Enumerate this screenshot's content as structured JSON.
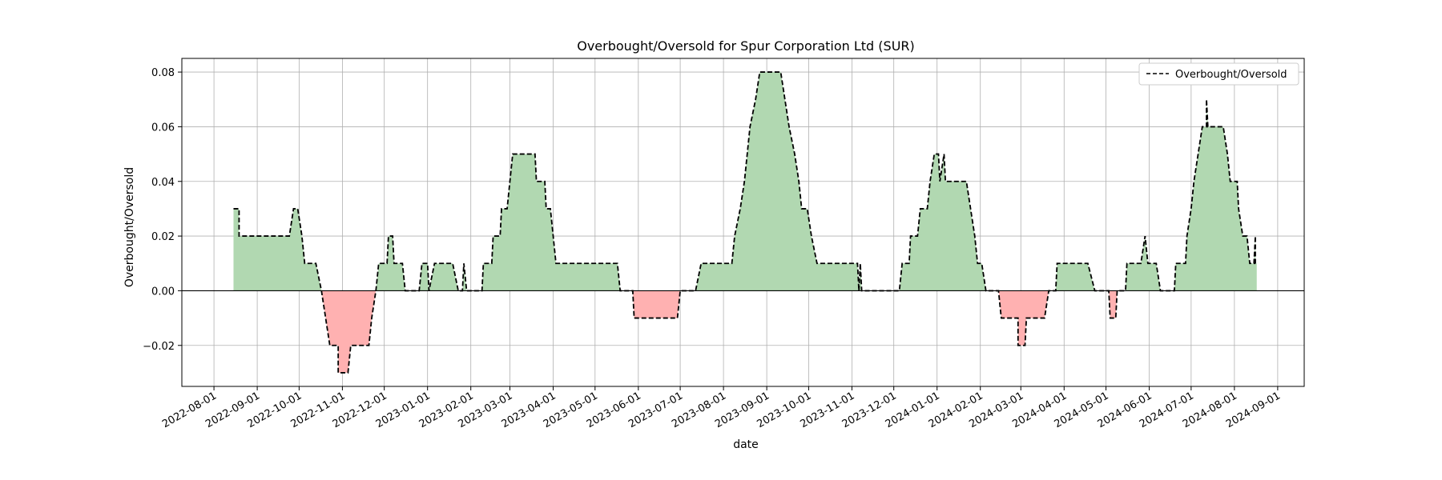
{
  "chart_data": {
    "type": "area",
    "title": "Overbought/Oversold for Spur Corporation Ltd (SUR)",
    "xlabel": "date",
    "ylabel": "Overbought/Oversold",
    "x_range": [
      "2022-07-09",
      "2024-09-20"
    ],
    "ylim": [
      -0.035,
      0.085
    ],
    "grid": true,
    "legend_position": "top-right",
    "x_ticks": [
      "2022-08-01",
      "2022-09-01",
      "2022-10-01",
      "2022-11-01",
      "2022-12-01",
      "2023-01-01",
      "2023-02-01",
      "2023-03-01",
      "2023-04-01",
      "2023-05-01",
      "2023-06-01",
      "2023-07-01",
      "2023-08-01",
      "2023-09-01",
      "2023-10-01",
      "2023-11-01",
      "2023-12-01",
      "2024-01-01",
      "2024-02-01",
      "2024-03-01",
      "2024-04-01",
      "2024-05-01",
      "2024-06-01",
      "2024-07-01",
      "2024-08-01",
      "2024-09-01"
    ],
    "y_ticks": [
      -0.02,
      0.0,
      0.02,
      0.04,
      0.06,
      0.08
    ],
    "y_tick_labels": [
      "−0.02",
      "0.00",
      "0.02",
      "0.04",
      "0.06",
      "0.08"
    ],
    "colors": {
      "positive_fill": "#b1d8b1",
      "negative_fill": "#ffb1b1",
      "line": "#000000",
      "zero_line": "#000000",
      "grid": "#b0b0b0"
    },
    "series": [
      {
        "name": "Overbought/Oversold",
        "style": "dashed",
        "points": [
          [
            "2022-08-15",
            0.03
          ],
          [
            "2022-08-19",
            0.03
          ],
          [
            "2022-08-19",
            0.02
          ],
          [
            "2022-09-24",
            0.02
          ],
          [
            "2022-09-27",
            0.03
          ],
          [
            "2022-09-30",
            0.03
          ],
          [
            "2022-10-03",
            0.02
          ],
          [
            "2022-10-05",
            0.01
          ],
          [
            "2022-10-13",
            0.01
          ],
          [
            "2022-10-17",
            0.0
          ],
          [
            "2022-10-20",
            -0.01
          ],
          [
            "2022-10-23",
            -0.02
          ],
          [
            "2022-10-29",
            -0.02
          ],
          [
            "2022-10-29",
            -0.03
          ],
          [
            "2022-11-05",
            -0.03
          ],
          [
            "2022-11-07",
            -0.02
          ],
          [
            "2022-11-20",
            -0.02
          ],
          [
            "2022-11-22",
            -0.01
          ],
          [
            "2022-11-25",
            0.0
          ],
          [
            "2022-11-27",
            0.01
          ],
          [
            "2022-12-03",
            0.01
          ],
          [
            "2022-12-04",
            0.02
          ],
          [
            "2022-12-07",
            0.02
          ],
          [
            "2022-12-08",
            0.01
          ],
          [
            "2022-12-14",
            0.01
          ],
          [
            "2022-12-16",
            0.0
          ],
          [
            "2022-12-26",
            0.0
          ],
          [
            "2022-12-28",
            0.01
          ],
          [
            "2023-01-01",
            0.01
          ],
          [
            "2023-01-02",
            0.0
          ],
          [
            "2023-01-06",
            0.01
          ],
          [
            "2023-01-19",
            0.01
          ],
          [
            "2023-01-23",
            0.0
          ],
          [
            "2023-01-26",
            0.0
          ],
          [
            "2023-01-27",
            0.01
          ],
          [
            "2023-01-29",
            0.0
          ],
          [
            "2023-02-09",
            0.0
          ],
          [
            "2023-02-10",
            0.01
          ],
          [
            "2023-02-16",
            0.01
          ],
          [
            "2023-02-17",
            0.02
          ],
          [
            "2023-02-22",
            0.02
          ],
          [
            "2023-02-23",
            0.03
          ],
          [
            "2023-02-27",
            0.03
          ],
          [
            "2023-03-01",
            0.04
          ],
          [
            "2023-03-03",
            0.05
          ],
          [
            "2023-03-19",
            0.05
          ],
          [
            "2023-03-20",
            0.04
          ],
          [
            "2023-03-26",
            0.04
          ],
          [
            "2023-03-27",
            0.03
          ],
          [
            "2023-03-30",
            0.03
          ],
          [
            "2023-04-01",
            0.02
          ],
          [
            "2023-04-03",
            0.01
          ],
          [
            "2023-05-17",
            0.01
          ],
          [
            "2023-05-19",
            0.0
          ],
          [
            "2023-05-28",
            0.0
          ],
          [
            "2023-05-29",
            -0.01
          ],
          [
            "2023-06-29",
            -0.01
          ],
          [
            "2023-07-01",
            0.0
          ],
          [
            "2023-07-12",
            0.0
          ],
          [
            "2023-07-16",
            0.01
          ],
          [
            "2023-08-07",
            0.01
          ],
          [
            "2023-08-09",
            0.02
          ],
          [
            "2023-08-13",
            0.03
          ],
          [
            "2023-08-16",
            0.04
          ],
          [
            "2023-08-20",
            0.06
          ],
          [
            "2023-08-24",
            0.07
          ],
          [
            "2023-08-27",
            0.08
          ],
          [
            "2023-09-11",
            0.08
          ],
          [
            "2023-09-14",
            0.07
          ],
          [
            "2023-09-17",
            0.06
          ],
          [
            "2023-09-21",
            0.05
          ],
          [
            "2023-09-24",
            0.04
          ],
          [
            "2023-09-26",
            0.03
          ],
          [
            "2023-09-30",
            0.03
          ],
          [
            "2023-10-03",
            0.02
          ],
          [
            "2023-10-07",
            0.01
          ],
          [
            "2023-11-05",
            0.01
          ],
          [
            "2023-11-06",
            0.0
          ],
          [
            "2023-11-07",
            0.01
          ],
          [
            "2023-11-08",
            0.0
          ],
          [
            "2023-12-05",
            0.0
          ],
          [
            "2023-12-07",
            0.01
          ],
          [
            "2023-12-12",
            0.01
          ],
          [
            "2023-12-13",
            0.02
          ],
          [
            "2023-12-18",
            0.02
          ],
          [
            "2023-12-20",
            0.03
          ],
          [
            "2023-12-25",
            0.03
          ],
          [
            "2023-12-27",
            0.04
          ],
          [
            "2023-12-30",
            0.05
          ],
          [
            "2024-01-02",
            0.05
          ],
          [
            "2024-01-03",
            0.04
          ],
          [
            "2024-01-06",
            0.05
          ],
          [
            "2024-01-07",
            0.04
          ],
          [
            "2024-01-22",
            0.04
          ],
          [
            "2024-01-25",
            0.03
          ],
          [
            "2024-01-28",
            0.02
          ],
          [
            "2024-01-30",
            0.01
          ],
          [
            "2024-02-02",
            0.01
          ],
          [
            "2024-02-05",
            0.0
          ],
          [
            "2024-02-14",
            0.0
          ],
          [
            "2024-02-16",
            -0.01
          ],
          [
            "2024-02-28",
            -0.01
          ],
          [
            "2024-02-28",
            -0.02
          ],
          [
            "2024-03-04",
            -0.02
          ],
          [
            "2024-03-05",
            -0.01
          ],
          [
            "2024-03-18",
            -0.01
          ],
          [
            "2024-03-21",
            0.0
          ],
          [
            "2024-03-26",
            0.0
          ],
          [
            "2024-03-27",
            0.01
          ],
          [
            "2024-04-18",
            0.01
          ],
          [
            "2024-04-23",
            0.0
          ],
          [
            "2024-05-03",
            0.0
          ],
          [
            "2024-05-04",
            -0.01
          ],
          [
            "2024-05-08",
            -0.01
          ],
          [
            "2024-05-09",
            0.0
          ],
          [
            "2024-05-15",
            0.0
          ],
          [
            "2024-05-16",
            0.01
          ],
          [
            "2024-05-26",
            0.01
          ],
          [
            "2024-05-29",
            0.02
          ],
          [
            "2024-05-31",
            0.01
          ],
          [
            "2024-06-06",
            0.01
          ],
          [
            "2024-06-09",
            0.0
          ],
          [
            "2024-06-19",
            0.0
          ],
          [
            "2024-06-20",
            0.01
          ],
          [
            "2024-06-27",
            0.01
          ],
          [
            "2024-06-28",
            0.02
          ],
          [
            "2024-07-01",
            0.03
          ],
          [
            "2024-07-03",
            0.04
          ],
          [
            "2024-07-06",
            0.05
          ],
          [
            "2024-07-09",
            0.06
          ],
          [
            "2024-07-12",
            0.06
          ],
          [
            "2024-07-12",
            0.07
          ],
          [
            "2024-07-13",
            0.06
          ],
          [
            "2024-07-24",
            0.06
          ],
          [
            "2024-07-27",
            0.05
          ],
          [
            "2024-07-29",
            0.04
          ],
          [
            "2024-08-03",
            0.04
          ],
          [
            "2024-08-04",
            0.03
          ],
          [
            "2024-08-07",
            0.02
          ],
          [
            "2024-08-10",
            0.02
          ],
          [
            "2024-08-12",
            0.01
          ],
          [
            "2024-08-15",
            0.01
          ],
          [
            "2024-08-16",
            0.02
          ],
          [
            "2024-08-16",
            0.01
          ],
          [
            "2024-08-17",
            0.01
          ]
        ]
      }
    ]
  }
}
